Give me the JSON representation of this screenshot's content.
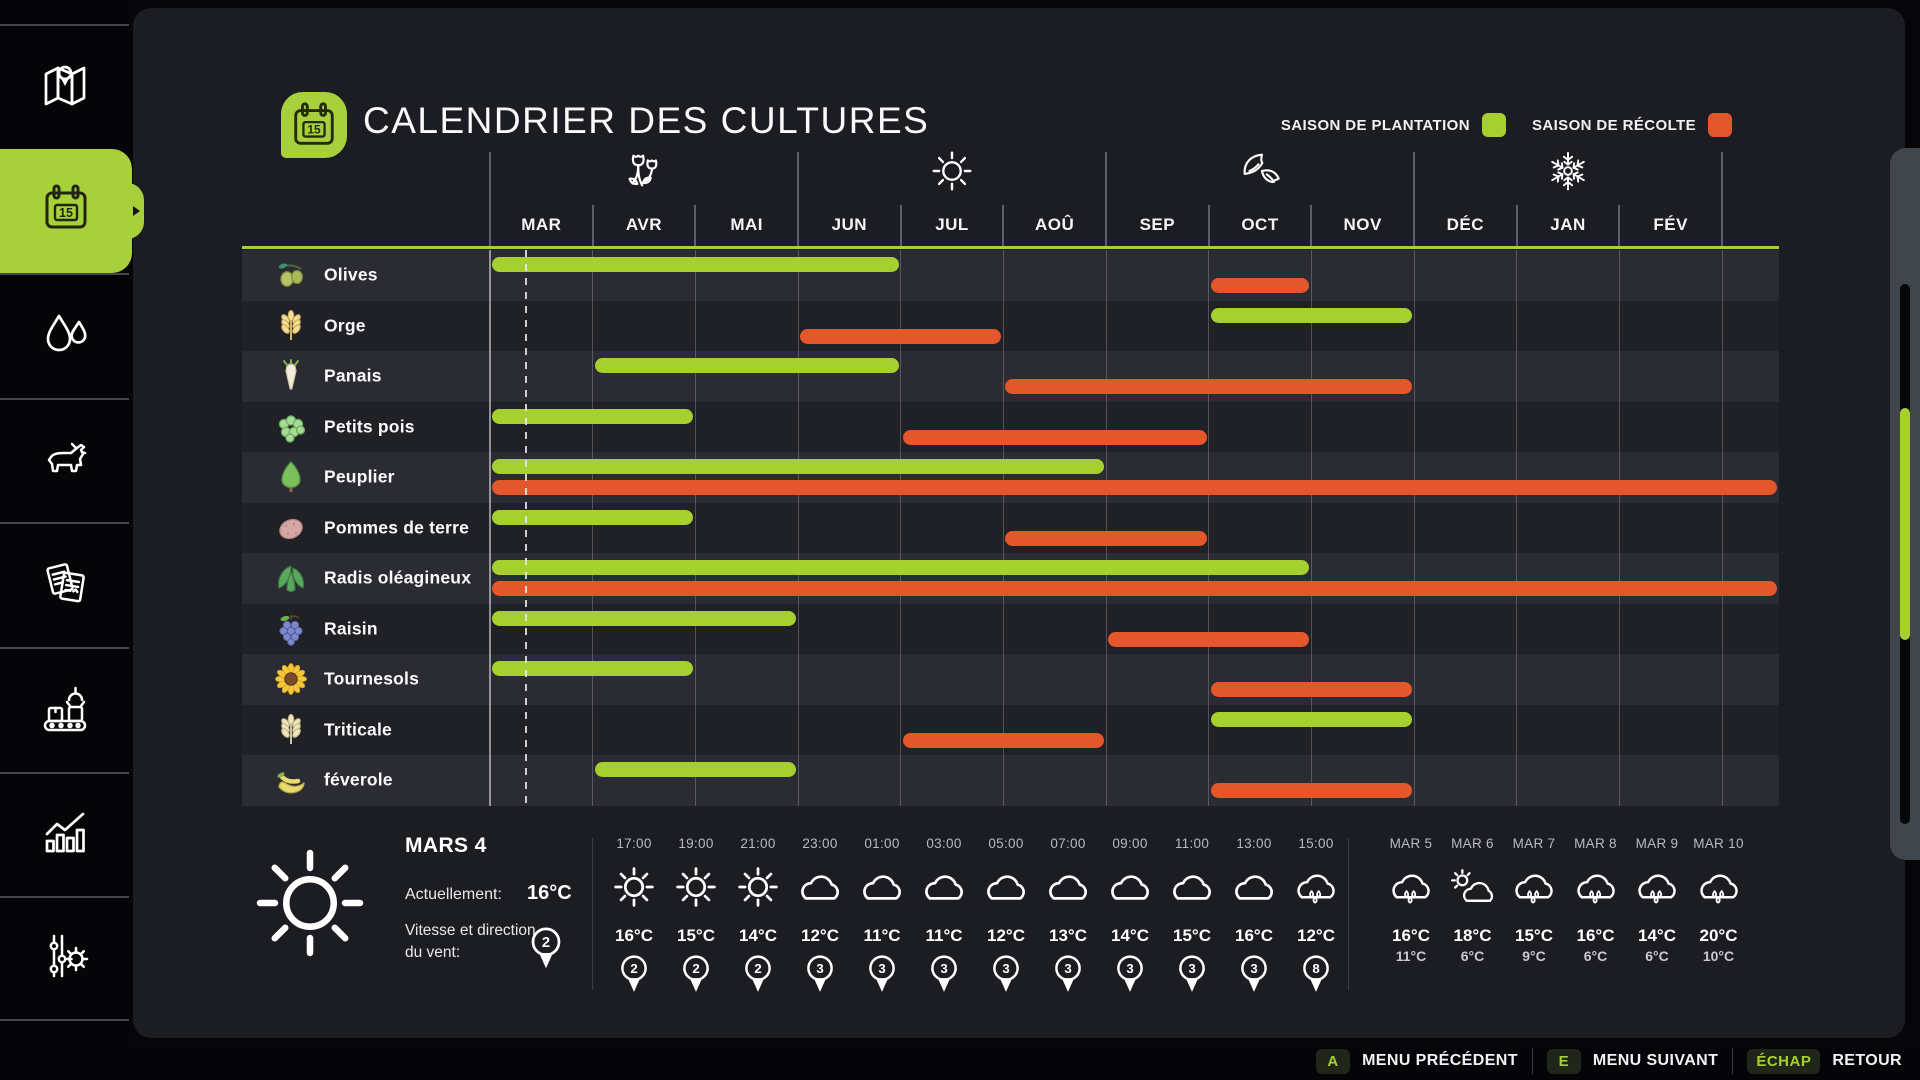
{
  "header": {
    "title": "CALENDRIER DES CULTURES",
    "calendar_day": "15",
    "legend": [
      {
        "label": "SAISON DE PLANTATION",
        "color": "#a6d02f"
      },
      {
        "label": "SAISON DE RÉCOLTE",
        "color": "#e4572a"
      }
    ]
  },
  "chart_data": {
    "type": "gantt",
    "title": "CALENDRIER DES CULTURES",
    "months": [
      "MAR",
      "AVR",
      "MAI",
      "JUN",
      "JUL",
      "AOÛ",
      "SEP",
      "OCT",
      "NOV",
      "DÉC",
      "JAN",
      "FÉV"
    ],
    "season_icons": [
      "spring-flower-icon",
      "summer-sun-icon",
      "autumn-leaves-icon",
      "winter-snowflake-icon"
    ],
    "current_date_line_month": "MAR",
    "colors": {
      "plantation": "#a6d02f",
      "recolte": "#e4572a"
    },
    "rows": [
      {
        "crop": "Olives",
        "icon": "olive-icon",
        "plantation": {
          "start": "MAR",
          "end": "JUN"
        },
        "recolte": {
          "start": "OCT",
          "end": "OCT"
        }
      },
      {
        "crop": "Orge",
        "icon": "barley-icon",
        "plantation": {
          "start": "OCT",
          "end": "NOV"
        },
        "recolte": {
          "start": "JUN",
          "end": "JUL"
        }
      },
      {
        "crop": "Panais",
        "icon": "parsnip-icon",
        "plantation": {
          "start": "AVR",
          "end": "JUN"
        },
        "recolte": {
          "start": "AOÛ",
          "end": "NOV"
        }
      },
      {
        "crop": "Petits pois",
        "icon": "peas-icon",
        "plantation": {
          "start": "MAR",
          "end": "AVR"
        },
        "recolte": {
          "start": "JUL",
          "end": "SEP"
        }
      },
      {
        "crop": "Peuplier",
        "icon": "poplar-icon",
        "plantation": {
          "start": "MAR",
          "end": "AOÛ"
        },
        "recolte": {
          "start": "MAR",
          "end": "FÉV"
        }
      },
      {
        "crop": "Pommes de terre",
        "icon": "potato-icon",
        "plantation": {
          "start": "MAR",
          "end": "AVR"
        },
        "recolte": {
          "start": "AOÛ",
          "end": "SEP"
        }
      },
      {
        "crop": "Radis oléagineux",
        "icon": "radish-icon",
        "plantation": {
          "start": "MAR",
          "end": "OCT"
        },
        "recolte": {
          "start": "MAR",
          "end": "FÉV"
        }
      },
      {
        "crop": "Raisin",
        "icon": "grapes-icon",
        "plantation": {
          "start": "MAR",
          "end": "MAI"
        },
        "recolte": {
          "start": "SEP",
          "end": "OCT"
        }
      },
      {
        "crop": "Tournesols",
        "icon": "sunflower-icon",
        "plantation": {
          "start": "MAR",
          "end": "AVR"
        },
        "recolte": {
          "start": "OCT",
          "end": "NOV"
        }
      },
      {
        "crop": "Triticale",
        "icon": "triticale-icon",
        "plantation": {
          "start": "OCT",
          "end": "NOV"
        },
        "recolte": {
          "start": "JUL",
          "end": "AOÛ"
        }
      },
      {
        "crop": "féverole",
        "icon": "bean-icon",
        "plantation": {
          "start": "AVR",
          "end": "MAI"
        },
        "recolte": {
          "start": "OCT",
          "end": "NOV"
        }
      }
    ]
  },
  "weather": {
    "current": {
      "date": "MARS 4",
      "icon": "sun-icon",
      "actuellement_label": "Actuellement:",
      "temp": "16°C",
      "wind_label": "Vitesse et direction du vent:",
      "wind": "2"
    },
    "hourly": [
      {
        "time": "17:00",
        "icon": "sun-icon",
        "temp": "16°C",
        "wind": "2"
      },
      {
        "time": "19:00",
        "icon": "sun-icon",
        "temp": "15°C",
        "wind": "2"
      },
      {
        "time": "21:00",
        "icon": "sun-icon",
        "temp": "14°C",
        "wind": "2"
      },
      {
        "time": "23:00",
        "icon": "cloud-icon",
        "temp": "12°C",
        "wind": "3"
      },
      {
        "time": "01:00",
        "icon": "cloud-icon",
        "temp": "11°C",
        "wind": "3"
      },
      {
        "time": "03:00",
        "icon": "cloud-icon",
        "temp": "11°C",
        "wind": "3"
      },
      {
        "time": "05:00",
        "icon": "cloud-icon",
        "temp": "12°C",
        "wind": "3"
      },
      {
        "time": "07:00",
        "icon": "cloud-icon",
        "temp": "13°C",
        "wind": "3"
      },
      {
        "time": "09:00",
        "icon": "cloud-icon",
        "temp": "14°C",
        "wind": "3"
      },
      {
        "time": "11:00",
        "icon": "cloud-icon",
        "temp": "15°C",
        "wind": "3"
      },
      {
        "time": "13:00",
        "icon": "cloud-icon",
        "temp": "16°C",
        "wind": "3"
      },
      {
        "time": "15:00",
        "icon": "rain-icon",
        "temp": "12°C",
        "wind": "8"
      }
    ],
    "daily": [
      {
        "date": "MAR 5",
        "icon": "rain-icon",
        "high": "16°C",
        "low": "11°C"
      },
      {
        "date": "MAR 6",
        "icon": "partly-sunny-icon",
        "high": "18°C",
        "low": "6°C"
      },
      {
        "date": "MAR 7",
        "icon": "rain-icon",
        "high": "15°C",
        "low": "9°C"
      },
      {
        "date": "MAR 8",
        "icon": "rain-icon",
        "high": "16°C",
        "low": "6°C"
      },
      {
        "date": "MAR 9",
        "icon": "rain-icon",
        "high": "14°C",
        "low": "6°C"
      },
      {
        "date": "MAR 10",
        "icon": "rain-icon",
        "high": "20°C",
        "low": "10°C"
      }
    ]
  },
  "sidebar": {
    "items": [
      {
        "name": "map",
        "icon": "map-icon",
        "active": false
      },
      {
        "name": "calendar",
        "icon": "calendar-icon",
        "active": true
      },
      {
        "name": "precision-farming",
        "icon": "water-drops-icon",
        "active": false
      },
      {
        "name": "animals",
        "icon": "cow-icon",
        "active": false
      },
      {
        "name": "contracts",
        "icon": "documents-icon",
        "active": false
      },
      {
        "name": "production",
        "icon": "production-icon",
        "active": false
      },
      {
        "name": "statistics",
        "icon": "statistics-icon",
        "active": false
      },
      {
        "name": "settings",
        "icon": "settings-icon",
        "active": false
      }
    ]
  },
  "footer": {
    "controls": [
      {
        "key": "A",
        "label": "MENU PRÉCÉDENT"
      },
      {
        "key": "E",
        "label": "MENU SUIVANT"
      },
      {
        "key": "ÉCHAP",
        "label": "RETOUR"
      }
    ]
  }
}
